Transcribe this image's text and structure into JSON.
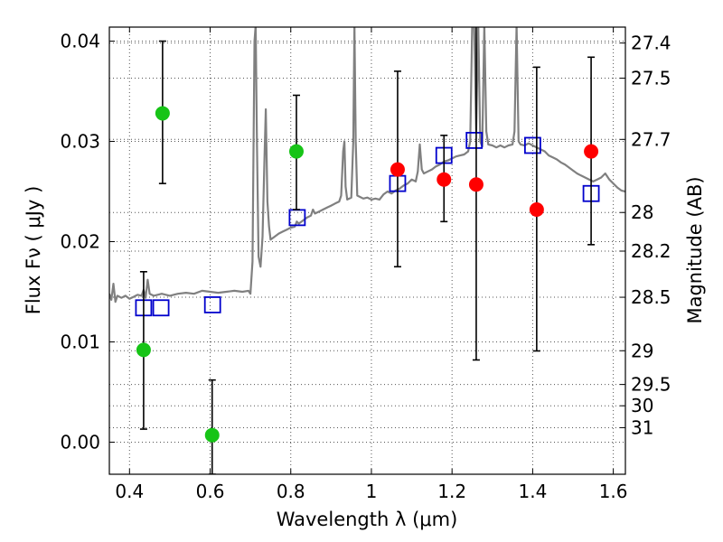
{
  "chart_data": {
    "type": "scatter",
    "title": "",
    "xlabel": "Wavelength  λ (μm)",
    "ylabel": "Flux  Fν  ( μJy )",
    "ylabel_right": "Magnitude (AB)",
    "xlim": [
      0.35,
      1.63
    ],
    "ylim": [
      -0.0032,
      0.0414
    ],
    "grid": true,
    "x_ticks": [
      {
        "value": 0.4,
        "label": "0.4"
      },
      {
        "value": 0.6,
        "label": "0.6"
      },
      {
        "value": 0.8,
        "label": "0.8"
      },
      {
        "value": 1.0,
        "label": "1"
      },
      {
        "value": 1.2,
        "label": "1.2"
      },
      {
        "value": 1.4,
        "label": "1.4"
      },
      {
        "value": 1.6,
        "label": "1.6"
      }
    ],
    "y_ticks": [
      {
        "value": 0.0,
        "label": "0.00"
      },
      {
        "value": 0.01,
        "label": "0.01"
      },
      {
        "value": 0.02,
        "label": "0.02"
      },
      {
        "value": 0.03,
        "label": "0.03"
      },
      {
        "value": 0.04,
        "label": "0.04"
      }
    ],
    "mag_ticks": [
      {
        "mag": 27.4,
        "label": "27.4"
      },
      {
        "mag": 27.5,
        "label": "27.5"
      },
      {
        "mag": 27.7,
        "label": "27.7"
      },
      {
        "mag": 28.0,
        "label": "28"
      },
      {
        "mag": 28.2,
        "label": "28.2"
      },
      {
        "mag": 28.5,
        "label": "28.5"
      },
      {
        "mag": 29.0,
        "label": "29"
      },
      {
        "mag": 29.5,
        "label": "29.5"
      },
      {
        "mag": 30.0,
        "label": "30"
      },
      {
        "mag": 31.0,
        "label": "31"
      }
    ],
    "colors": {
      "spectrum": "#808080",
      "green": "#17c417",
      "red": "#ff0000",
      "model": "#0000cc",
      "error": "#000000",
      "grid": "#555555"
    },
    "series": [
      {
        "name": "spectrum",
        "kind": "line",
        "points": [
          [
            0.35,
            0.0148
          ],
          [
            0.355,
            0.0142
          ],
          [
            0.36,
            0.0158
          ],
          [
            0.365,
            0.014
          ],
          [
            0.37,
            0.0146
          ],
          [
            0.38,
            0.0144
          ],
          [
            0.39,
            0.0146
          ],
          [
            0.4,
            0.0143
          ],
          [
            0.41,
            0.0145
          ],
          [
            0.42,
            0.0147
          ],
          [
            0.43,
            0.0146
          ],
          [
            0.435,
            0.0152
          ],
          [
            0.44,
            0.0144
          ],
          [
            0.445,
            0.0162
          ],
          [
            0.45,
            0.0148
          ],
          [
            0.46,
            0.0146
          ],
          [
            0.48,
            0.0148
          ],
          [
            0.5,
            0.0146
          ],
          [
            0.52,
            0.0148
          ],
          [
            0.54,
            0.0149
          ],
          [
            0.56,
            0.0148
          ],
          [
            0.58,
            0.0151
          ],
          [
            0.6,
            0.015
          ],
          [
            0.62,
            0.0149
          ],
          [
            0.64,
            0.015
          ],
          [
            0.66,
            0.0151
          ],
          [
            0.68,
            0.015
          ],
          [
            0.695,
            0.0151
          ],
          [
            0.7,
            0.0148
          ],
          [
            0.705,
            0.018
          ],
          [
            0.71,
            0.04
          ],
          [
            0.713,
            0.0416
          ],
          [
            0.716,
            0.03
          ],
          [
            0.72,
            0.0185
          ],
          [
            0.725,
            0.0175
          ],
          [
            0.73,
            0.0205
          ],
          [
            0.735,
            0.0285
          ],
          [
            0.738,
            0.0332
          ],
          [
            0.742,
            0.024
          ],
          [
            0.746,
            0.0215
          ],
          [
            0.75,
            0.0202
          ],
          [
            0.76,
            0.0205
          ],
          [
            0.77,
            0.0208
          ],
          [
            0.78,
            0.021
          ],
          [
            0.79,
            0.0212
          ],
          [
            0.8,
            0.0214
          ],
          [
            0.81,
            0.0215
          ],
          [
            0.815,
            0.022
          ],
          [
            0.82,
            0.0218
          ],
          [
            0.83,
            0.0221
          ],
          [
            0.84,
            0.0224
          ],
          [
            0.85,
            0.0226
          ],
          [
            0.855,
            0.0232
          ],
          [
            0.86,
            0.0228
          ],
          [
            0.87,
            0.023
          ],
          [
            0.88,
            0.0232
          ],
          [
            0.89,
            0.0234
          ],
          [
            0.9,
            0.0236
          ],
          [
            0.91,
            0.0238
          ],
          [
            0.92,
            0.024
          ],
          [
            0.925,
            0.0246
          ],
          [
            0.93,
            0.029
          ],
          [
            0.933,
            0.03
          ],
          [
            0.936,
            0.0255
          ],
          [
            0.94,
            0.0242
          ],
          [
            0.95,
            0.0244
          ],
          [
            0.955,
            0.03
          ],
          [
            0.958,
            0.0416
          ],
          [
            0.961,
            0.03
          ],
          [
            0.965,
            0.0246
          ],
          [
            0.97,
            0.0245
          ],
          [
            0.98,
            0.0243
          ],
          [
            0.99,
            0.0244
          ],
          [
            1.0,
            0.0242
          ],
          [
            1.01,
            0.0243
          ],
          [
            1.02,
            0.0242
          ],
          [
            1.03,
            0.0247
          ],
          [
            1.04,
            0.025
          ],
          [
            1.05,
            0.0248
          ],
          [
            1.06,
            0.0251
          ],
          [
            1.07,
            0.0253
          ],
          [
            1.08,
            0.0256
          ],
          [
            1.09,
            0.0258
          ],
          [
            1.1,
            0.0262
          ],
          [
            1.11,
            0.026
          ],
          [
            1.115,
            0.027
          ],
          [
            1.12,
            0.0297
          ],
          [
            1.125,
            0.0272
          ],
          [
            1.13,
            0.0268
          ],
          [
            1.14,
            0.027
          ],
          [
            1.15,
            0.0272
          ],
          [
            1.16,
            0.0275
          ],
          [
            1.17,
            0.0277
          ],
          [
            1.18,
            0.028
          ],
          [
            1.19,
            0.0281
          ],
          [
            1.2,
            0.0283
          ],
          [
            1.21,
            0.0285
          ],
          [
            1.22,
            0.0286
          ],
          [
            1.23,
            0.0287
          ],
          [
            1.24,
            0.029
          ],
          [
            1.245,
            0.03
          ],
          [
            1.25,
            0.0416
          ],
          [
            1.255,
            0.0416
          ],
          [
            1.26,
            0.031
          ],
          [
            1.265,
            0.0416
          ],
          [
            1.27,
            0.03
          ],
          [
            1.275,
            0.0295
          ],
          [
            1.28,
            0.0416
          ],
          [
            1.285,
            0.031
          ],
          [
            1.29,
            0.0297
          ],
          [
            1.3,
            0.0296
          ],
          [
            1.31,
            0.0294
          ],
          [
            1.32,
            0.0296
          ],
          [
            1.33,
            0.0294
          ],
          [
            1.34,
            0.0296
          ],
          [
            1.35,
            0.0297
          ],
          [
            1.355,
            0.031
          ],
          [
            1.36,
            0.0416
          ],
          [
            1.365,
            0.03
          ],
          [
            1.37,
            0.0297
          ],
          [
            1.38,
            0.0296
          ],
          [
            1.39,
            0.0298
          ],
          [
            1.4,
            0.0296
          ],
          [
            1.41,
            0.0294
          ],
          [
            1.42,
            0.0292
          ],
          [
            1.43,
            0.029
          ],
          [
            1.44,
            0.0286
          ],
          [
            1.45,
            0.0284
          ],
          [
            1.46,
            0.0282
          ],
          [
            1.47,
            0.0279
          ],
          [
            1.48,
            0.0277
          ],
          [
            1.49,
            0.0274
          ],
          [
            1.5,
            0.0271
          ],
          [
            1.51,
            0.0268
          ],
          [
            1.52,
            0.0266
          ],
          [
            1.53,
            0.0264
          ],
          [
            1.54,
            0.0262
          ],
          [
            1.55,
            0.026
          ],
          [
            1.56,
            0.0262
          ],
          [
            1.57,
            0.0264
          ],
          [
            1.58,
            0.0268
          ],
          [
            1.59,
            0.0262
          ],
          [
            1.6,
            0.0258
          ],
          [
            1.61,
            0.0254
          ],
          [
            1.62,
            0.0251
          ],
          [
            1.63,
            0.025
          ]
        ]
      },
      {
        "name": "green points",
        "kind": "circle",
        "color": "#17c417",
        "points": [
          {
            "x": 0.435,
            "y": 0.0092,
            "err_lo": 0.0013,
            "err_hi": 0.017
          },
          {
            "x": 0.482,
            "y": 0.0328,
            "err_lo": 0.0258,
            "err_hi": 0.04
          },
          {
            "x": 0.605,
            "y": 0.0007,
            "err_lo": -0.0032,
            "err_hi": 0.0062
          },
          {
            "x": 0.814,
            "y": 0.029,
            "err_lo": 0.0232,
            "err_hi": 0.0346
          }
        ]
      },
      {
        "name": "red points",
        "kind": "circle",
        "color": "#ff0000",
        "points": [
          {
            "x": 1.065,
            "y": 0.0272,
            "err_lo": 0.0175,
            "err_hi": 0.037
          },
          {
            "x": 1.18,
            "y": 0.0262,
            "err_lo": 0.022,
            "err_hi": 0.0306
          },
          {
            "x": 1.26,
            "y": 0.0257,
            "err_lo": 0.0082,
            "err_hi": 0.0416
          },
          {
            "x": 1.41,
            "y": 0.0232,
            "err_lo": 0.0091,
            "err_hi": 0.0374
          },
          {
            "x": 1.545,
            "y": 0.029,
            "err_lo": 0.0197,
            "err_hi": 0.0384
          }
        ]
      },
      {
        "name": "model bandpasses",
        "kind": "square",
        "color": "#0000cc",
        "points": [
          {
            "x": 0.435,
            "y": 0.0134
          },
          {
            "x": 0.478,
            "y": 0.0134
          },
          {
            "x": 0.606,
            "y": 0.0137
          },
          {
            "x": 0.816,
            "y": 0.0224
          },
          {
            "x": 1.065,
            "y": 0.0258
          },
          {
            "x": 1.18,
            "y": 0.0286
          },
          {
            "x": 1.255,
            "y": 0.0301
          },
          {
            "x": 1.4,
            "y": 0.0296
          },
          {
            "x": 1.545,
            "y": 0.0248
          }
        ]
      }
    ]
  }
}
